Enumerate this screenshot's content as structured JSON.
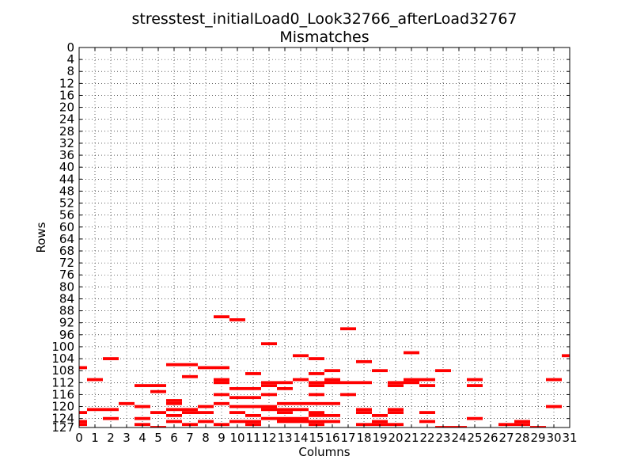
{
  "chart_data": {
    "type": "heatmap",
    "title_line1": "stresstest_initialLoad0_Look32766_afterLoad32767",
    "title_line2": "Mismatches",
    "xlabel": "Columns",
    "ylabel": "Rows",
    "columns": [
      0,
      1,
      2,
      3,
      4,
      5,
      6,
      7,
      8,
      9,
      10,
      11,
      12,
      13,
      14,
      15,
      16,
      17,
      18,
      19,
      20,
      21,
      22,
      23,
      24,
      25,
      26,
      27,
      28,
      29,
      30,
      31
    ],
    "row_ticks": [
      0,
      4,
      8,
      12,
      16,
      20,
      24,
      28,
      32,
      36,
      40,
      44,
      48,
      52,
      56,
      60,
      64,
      68,
      72,
      76,
      80,
      84,
      88,
      92,
      96,
      100,
      104,
      108,
      112,
      116,
      120,
      124,
      127
    ],
    "xlim": [
      0,
      31
    ],
    "ylim": [
      127,
      0
    ],
    "grid": true,
    "mismatch_color": "#ff0000",
    "mismatches": [
      {
        "col": 0,
        "row": 107
      },
      {
        "col": 0,
        "row": 122
      },
      {
        "col": 0,
        "row": 125
      },
      {
        "col": 0,
        "row": 126
      },
      {
        "col": 1,
        "row": 111
      },
      {
        "col": 1,
        "row": 121
      },
      {
        "col": 2,
        "row": 104
      },
      {
        "col": 2,
        "row": 121
      },
      {
        "col": 2,
        "row": 124
      },
      {
        "col": 3,
        "row": 119
      },
      {
        "col": 4,
        "row": 113
      },
      {
        "col": 4,
        "row": 120
      },
      {
        "col": 4,
        "row": 124
      },
      {
        "col": 4,
        "row": 126
      },
      {
        "col": 5,
        "row": 113
      },
      {
        "col": 5,
        "row": 115
      },
      {
        "col": 5,
        "row": 122
      },
      {
        "col": 5,
        "row": 127
      },
      {
        "col": 6,
        "row": 106
      },
      {
        "col": 6,
        "row": 118
      },
      {
        "col": 6,
        "row": 119
      },
      {
        "col": 6,
        "row": 121
      },
      {
        "col": 6,
        "row": 123
      },
      {
        "col": 6,
        "row": 125
      },
      {
        "col": 7,
        "row": 106
      },
      {
        "col": 7,
        "row": 110
      },
      {
        "col": 7,
        "row": 121
      },
      {
        "col": 7,
        "row": 122
      },
      {
        "col": 7,
        "row": 126
      },
      {
        "col": 8,
        "row": 107
      },
      {
        "col": 8,
        "row": 120
      },
      {
        "col": 8,
        "row": 122
      },
      {
        "col": 8,
        "row": 125
      },
      {
        "col": 9,
        "row": 90
      },
      {
        "col": 9,
        "row": 107
      },
      {
        "col": 9,
        "row": 111
      },
      {
        "col": 9,
        "row": 112
      },
      {
        "col": 9,
        "row": 116
      },
      {
        "col": 9,
        "row": 119
      },
      {
        "col": 9,
        "row": 126
      },
      {
        "col": 10,
        "row": 91
      },
      {
        "col": 10,
        "row": 114
      },
      {
        "col": 10,
        "row": 117
      },
      {
        "col": 10,
        "row": 120
      },
      {
        "col": 10,
        "row": 122
      },
      {
        "col": 10,
        "row": 125
      },
      {
        "col": 11,
        "row": 109
      },
      {
        "col": 11,
        "row": 114
      },
      {
        "col": 11,
        "row": 117
      },
      {
        "col": 11,
        "row": 120
      },
      {
        "col": 11,
        "row": 123
      },
      {
        "col": 11,
        "row": 125
      },
      {
        "col": 11,
        "row": 126
      },
      {
        "col": 12,
        "row": 99
      },
      {
        "col": 12,
        "row": 112
      },
      {
        "col": 12,
        "row": 113
      },
      {
        "col": 12,
        "row": 116
      },
      {
        "col": 12,
        "row": 120
      },
      {
        "col": 12,
        "row": 121
      },
      {
        "col": 12,
        "row": 124
      },
      {
        "col": 13,
        "row": 112
      },
      {
        "col": 13,
        "row": 114
      },
      {
        "col": 13,
        "row": 119
      },
      {
        "col": 13,
        "row": 121
      },
      {
        "col": 13,
        "row": 122
      },
      {
        "col": 13,
        "row": 124
      },
      {
        "col": 13,
        "row": 125
      },
      {
        "col": 14,
        "row": 103
      },
      {
        "col": 14,
        "row": 111
      },
      {
        "col": 14,
        "row": 119
      },
      {
        "col": 14,
        "row": 121
      },
      {
        "col": 14,
        "row": 124
      },
      {
        "col": 14,
        "row": 125
      },
      {
        "col": 15,
        "row": 104
      },
      {
        "col": 15,
        "row": 109
      },
      {
        "col": 15,
        "row": 112
      },
      {
        "col": 15,
        "row": 113
      },
      {
        "col": 15,
        "row": 116
      },
      {
        "col": 15,
        "row": 119
      },
      {
        "col": 15,
        "row": 122
      },
      {
        "col": 15,
        "row": 123
      },
      {
        "col": 15,
        "row": 125
      },
      {
        "col": 15,
        "row": 126
      },
      {
        "col": 16,
        "row": 108
      },
      {
        "col": 16,
        "row": 111
      },
      {
        "col": 16,
        "row": 112
      },
      {
        "col": 16,
        "row": 119
      },
      {
        "col": 16,
        "row": 123
      },
      {
        "col": 16,
        "row": 125
      },
      {
        "col": 17,
        "row": 94
      },
      {
        "col": 17,
        "row": 112
      },
      {
        "col": 17,
        "row": 116
      },
      {
        "col": 18,
        "row": 105
      },
      {
        "col": 18,
        "row": 112
      },
      {
        "col": 18,
        "row": 121
      },
      {
        "col": 18,
        "row": 122
      },
      {
        "col": 18,
        "row": 126
      },
      {
        "col": 19,
        "row": 108
      },
      {
        "col": 19,
        "row": 123
      },
      {
        "col": 19,
        "row": 125
      },
      {
        "col": 19,
        "row": 126
      },
      {
        "col": 20,
        "row": 112
      },
      {
        "col": 20,
        "row": 113
      },
      {
        "col": 20,
        "row": 121
      },
      {
        "col": 20,
        "row": 122
      },
      {
        "col": 20,
        "row": 126
      },
      {
        "col": 21,
        "row": 102
      },
      {
        "col": 21,
        "row": 111
      },
      {
        "col": 21,
        "row": 112
      },
      {
        "col": 22,
        "row": 111
      },
      {
        "col": 22,
        "row": 113
      },
      {
        "col": 22,
        "row": 122
      },
      {
        "col": 22,
        "row": 125
      },
      {
        "col": 23,
        "row": 108
      },
      {
        "col": 23,
        "row": 127
      },
      {
        "col": 24,
        "row": 127
      },
      {
        "col": 25,
        "row": 111
      },
      {
        "col": 25,
        "row": 113
      },
      {
        "col": 25,
        "row": 124
      },
      {
        "col": 27,
        "row": 126
      },
      {
        "col": 28,
        "row": 125
      },
      {
        "col": 28,
        "row": 126
      },
      {
        "col": 29,
        "row": 127
      },
      {
        "col": 30,
        "row": 111
      },
      {
        "col": 30,
        "row": 120
      },
      {
        "col": 31,
        "row": 103
      }
    ]
  }
}
